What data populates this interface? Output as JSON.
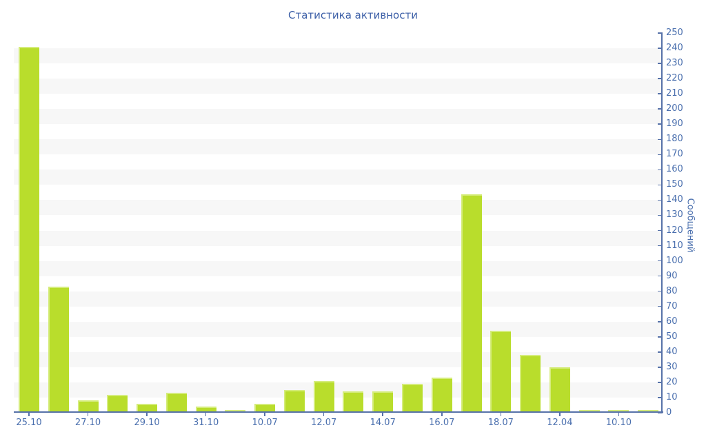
{
  "chart_data": {
    "type": "bar",
    "title": "Статистика активности",
    "ylabel": "Сообщений",
    "xlabel": "",
    "ylim": [
      0,
      250
    ],
    "ytick_step": 10,
    "grid": "alternating horizontal bands every 10 units",
    "legend": "none",
    "y_axis_side": "right",
    "categories": [
      "25.10",
      "",
      "27.10",
      "",
      "29.10",
      "",
      "31.10",
      "",
      "10.07",
      "",
      "12.07",
      "",
      "14.07",
      "",
      "16.07",
      "",
      "18.07",
      "",
      "12.04",
      "",
      "10.10",
      ""
    ],
    "values": [
      241,
      83,
      8,
      12,
      6,
      13,
      4,
      2,
      6,
      15,
      21,
      14,
      14,
      19,
      23,
      144,
      54,
      38,
      30,
      2,
      2,
      2
    ],
    "x_tick_labels": [
      "25.10",
      "27.10",
      "29.10",
      "31.10",
      "10.07",
      "12.07",
      "14.07",
      "16.07",
      "18.07",
      "12.04",
      "10.10"
    ],
    "colors": {
      "bar": "#b9dd2c",
      "bar_highlight": "#d5ec7c",
      "axis": "#5671a8",
      "tick_label": "#4a6fae",
      "title": "#3c5fa7",
      "stripe": "#f7f7f7",
      "background": "#ffffff"
    }
  }
}
